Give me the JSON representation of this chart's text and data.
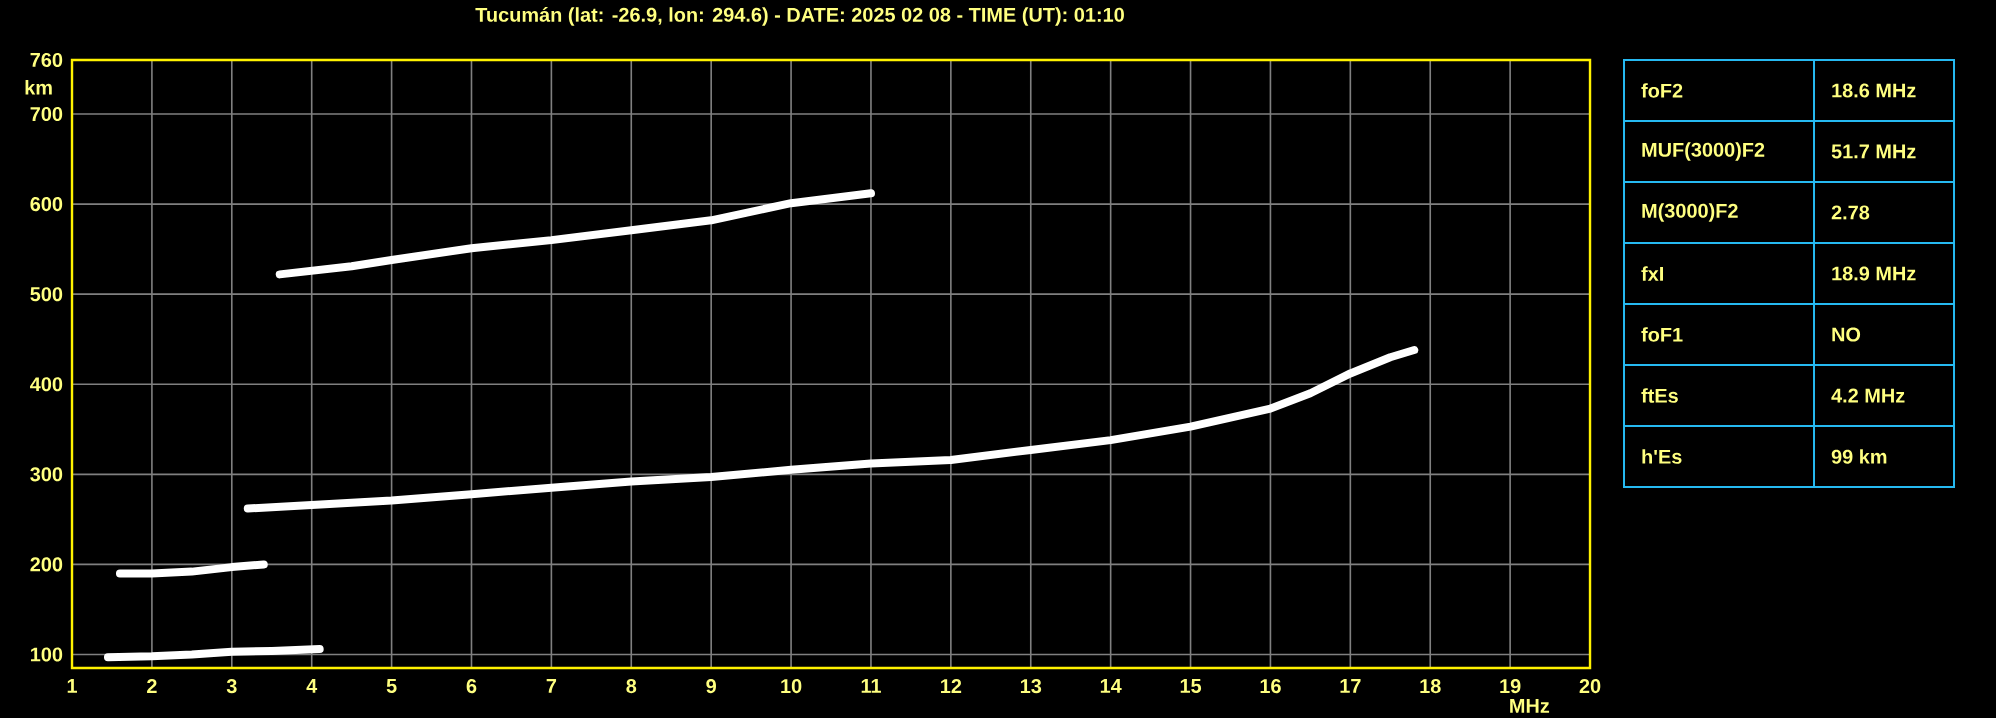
{
  "chart_data": {
    "type": "line",
    "title": "Tucumán (lat: -26.9, lon: 294.6) - DATE: 2025 02 08 - TIME (UT): 01:10",
    "xlabel": "MHz",
    "ylabel": "km",
    "xlim": [
      1,
      20
    ],
    "xticks": [
      1,
      2,
      3,
      4,
      5,
      6,
      7,
      8,
      9,
      10,
      11,
      12,
      13,
      14,
      15,
      16,
      17,
      18,
      19,
      20
    ],
    "ylim": [
      85,
      760
    ],
    "yticks": [
      100,
      200,
      300,
      400,
      500,
      600,
      700,
      760
    ],
    "grid": true,
    "series": [
      {
        "color": "#ffffff",
        "x": [
          1.45,
          2,
          2.5,
          3,
          3.5,
          4.1
        ],
        "values": [
          97,
          98,
          100,
          103,
          104,
          106
        ]
      },
      {
        "color": "#ffffff",
        "x": [
          1.6,
          2,
          2.5,
          3,
          3.4
        ],
        "values": [
          190,
          190,
          192,
          197,
          200
        ]
      },
      {
        "color": "#ffffff",
        "x": [
          3.2,
          4,
          5,
          6,
          7,
          8,
          9,
          10,
          11,
          12,
          13,
          14,
          15,
          16,
          16.5,
          17,
          17.5,
          17.8
        ],
        "values": [
          262,
          266,
          271,
          278,
          285,
          292,
          297,
          305,
          312,
          316,
          327,
          338,
          353,
          373,
          390,
          412,
          430,
          438
        ]
      },
      {
        "color": "#ffffff",
        "x": [
          3.6,
          4.5,
          5,
          6,
          7,
          8,
          9,
          10,
          11
        ],
        "values": [
          522,
          531,
          538,
          551,
          560,
          571,
          582,
          601,
          612
        ]
      }
    ],
    "annotations": [
      "foF2",
      "18.6 MHz",
      "MUF(3000)F2",
      "51.7 MHz",
      "M(3000)F2",
      "2.78",
      "fxI",
      "18.9 MHz",
      "foF1",
      "NO",
      "ftEs",
      "4.2 MHz",
      "h'Es",
      "99 km"
    ]
  }
}
